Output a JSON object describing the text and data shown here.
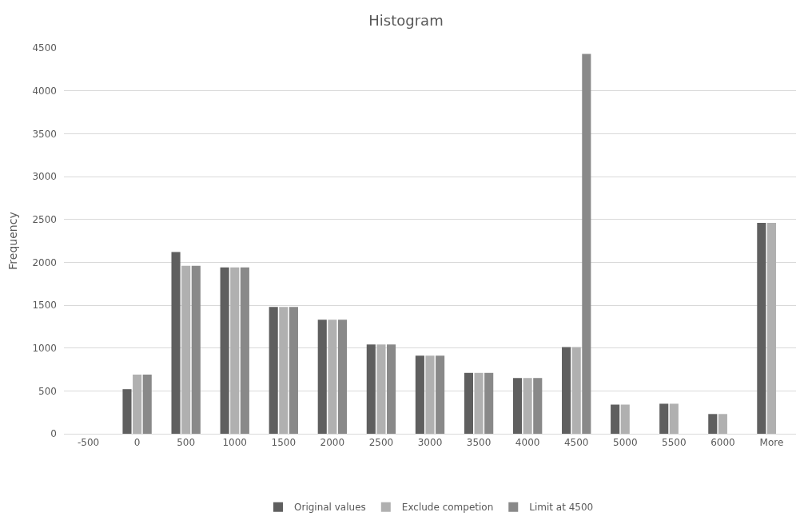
{
  "chart_data": {
    "type": "bar",
    "title": "Histogram",
    "ylabel": "Frequency",
    "categories": [
      "-500",
      "0",
      "500",
      "1000",
      "1500",
      "2000",
      "2500",
      "3000",
      "3500",
      "4000",
      "4500",
      "5000",
      "5500",
      "6000",
      "More"
    ],
    "series": [
      {
        "name": "Original values",
        "color": "#5f5f5f",
        "values": [
          0,
          520,
          2120,
          1940,
          1480,
          1330,
          1040,
          910,
          710,
          650,
          1010,
          340,
          350,
          230,
          2460
        ]
      },
      {
        "name": "Exclude competion",
        "color": "#b0b0b0",
        "values": [
          0,
          690,
          1960,
          1940,
          1480,
          1330,
          1040,
          910,
          710,
          650,
          1010,
          340,
          350,
          230,
          2460
        ]
      },
      {
        "name": "Limit at 4500",
        "color": "#898989",
        "values": [
          0,
          690,
          1960,
          1940,
          1480,
          1330,
          1040,
          910,
          710,
          650,
          4430,
          0,
          0,
          0,
          0
        ]
      }
    ],
    "ylim": [
      0,
      4500
    ],
    "yticks": [
      0,
      500,
      1000,
      1500,
      2000,
      2500,
      3000,
      3500,
      4000,
      4500
    ],
    "grid": "y",
    "legend": "bottom"
  }
}
